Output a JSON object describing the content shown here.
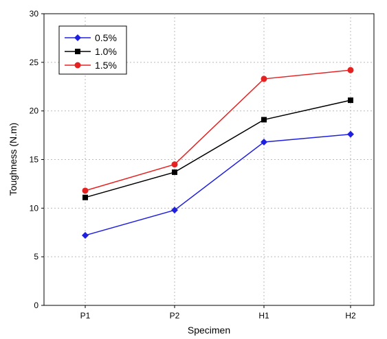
{
  "chart_data": {
    "type": "line",
    "xlabel": "Specimen",
    "ylabel": "Toughness (N.m)",
    "categories": [
      "P1",
      "P2",
      "H1",
      "H2"
    ],
    "ylim": [
      0,
      30
    ],
    "yticks": [
      "0",
      "5",
      "10",
      "15",
      "20",
      "25",
      "30"
    ],
    "grid": true,
    "legend_position": "top-left",
    "series": [
      {
        "name": "0.5%",
        "values": [
          7.2,
          9.8,
          16.8,
          17.6
        ],
        "color": "#1f1fe0",
        "marker": "diamond"
      },
      {
        "name": "1.0%",
        "values": [
          11.1,
          13.7,
          19.1,
          21.1
        ],
        "color": "#000000",
        "marker": "square"
      },
      {
        "name": "1.5%",
        "values": [
          11.8,
          14.5,
          23.3,
          24.2
        ],
        "color": "#e52222",
        "marker": "circle"
      }
    ]
  }
}
